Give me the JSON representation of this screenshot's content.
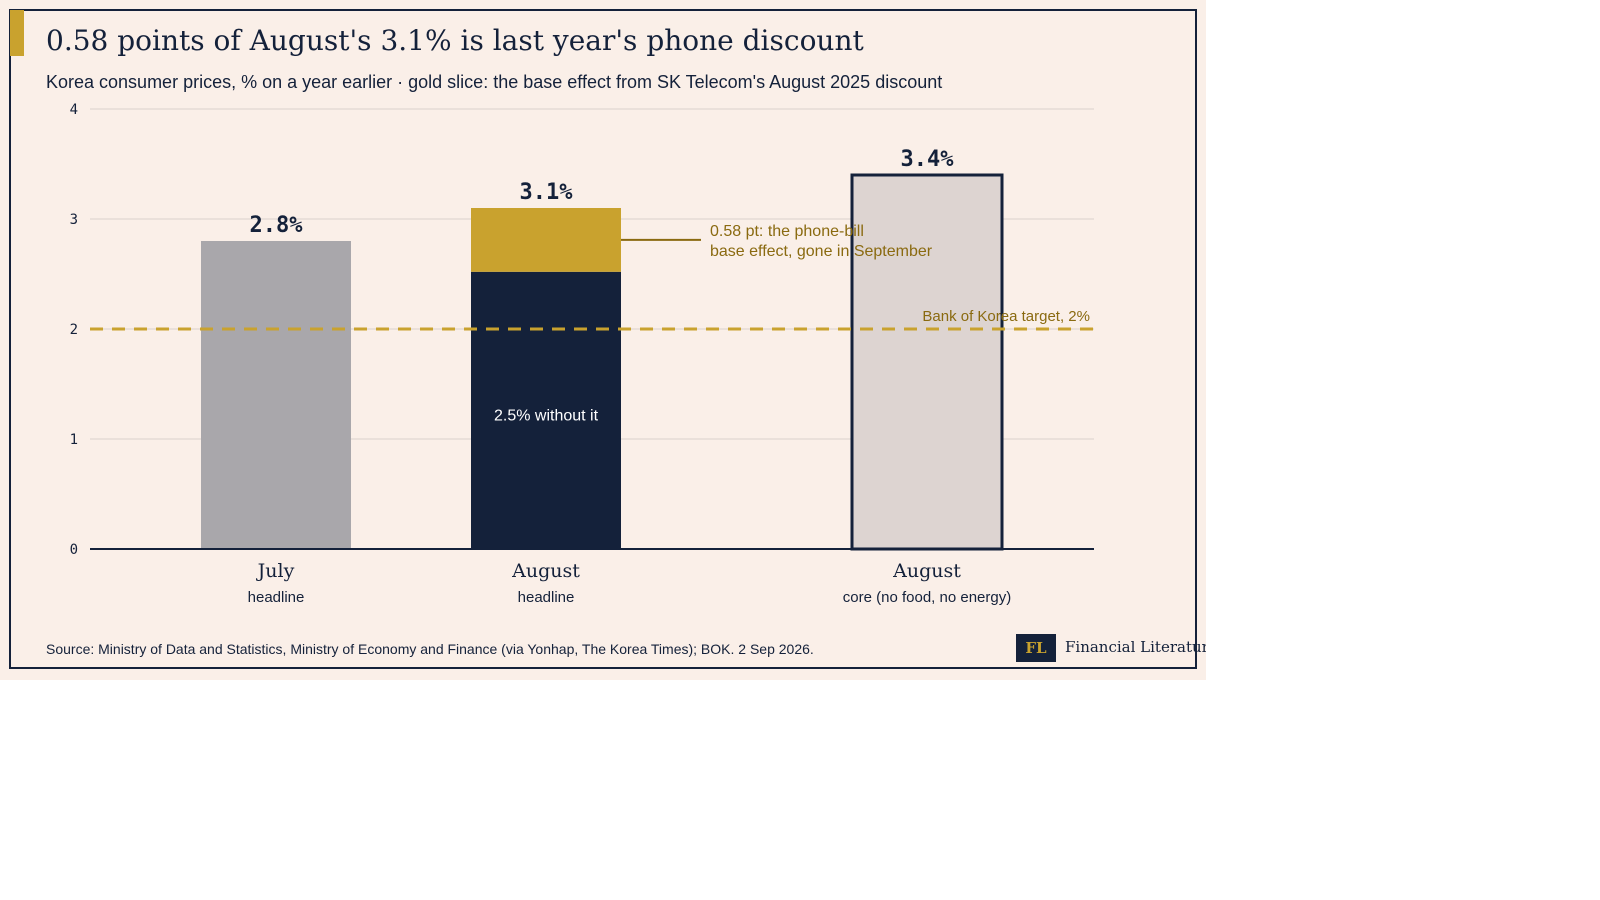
{
  "header": {
    "title": "0.58 points of August's 3.1% is last year's phone discount",
    "subtitle": "Korea consumer prices, % on a year earlier · gold slice: the base effect from SK Telecom's August 2025 discount"
  },
  "footer": {
    "source": "Source: Ministry of Data and Statistics, Ministry of Economy and Finance (via Yonhap, The Korea Times); BOK. 2 Sep 2026.",
    "brand_mark": "FL",
    "brand_name": "Financial Literature A"
  },
  "colors": {
    "background": "#faefe8",
    "navy": "#14213a",
    "gold": "#c9a22e",
    "gray_bar": "#a9a7ab",
    "core_bar": "#ddd4d1",
    "annotation": "#8a6a10"
  },
  "chart_data": {
    "type": "bar",
    "ylim": [
      0,
      4
    ],
    "yticks": [
      "0",
      "1",
      "2",
      "3",
      "4"
    ],
    "grid": true,
    "bars": [
      {
        "category": "July",
        "sublabel": "headline",
        "total": 2.8,
        "label": "2.8%",
        "segments": [
          {
            "value": 2.8,
            "color": "#a9a7ab"
          }
        ]
      },
      {
        "category": "August",
        "sublabel": "headline",
        "total": 3.1,
        "label": "3.1%",
        "inner_label": "2.5% without it",
        "segments": [
          {
            "value": 2.52,
            "color": "#14213a"
          },
          {
            "value": 0.58,
            "color": "#c9a22e"
          }
        ]
      },
      {
        "category": "August",
        "sublabel": "core (no food, no energy)",
        "total": 3.4,
        "label": "3.4%",
        "outlined": true,
        "segments": [
          {
            "value": 3.4,
            "color": "#ddd4d1"
          }
        ]
      }
    ],
    "reference_line": {
      "value": 2,
      "label": "Bank of Korea target, 2%"
    },
    "annotation": {
      "value": 2.81,
      "lines": [
        "0.58 pt: the phone-bill",
        "base effect, gone in September"
      ]
    }
  }
}
